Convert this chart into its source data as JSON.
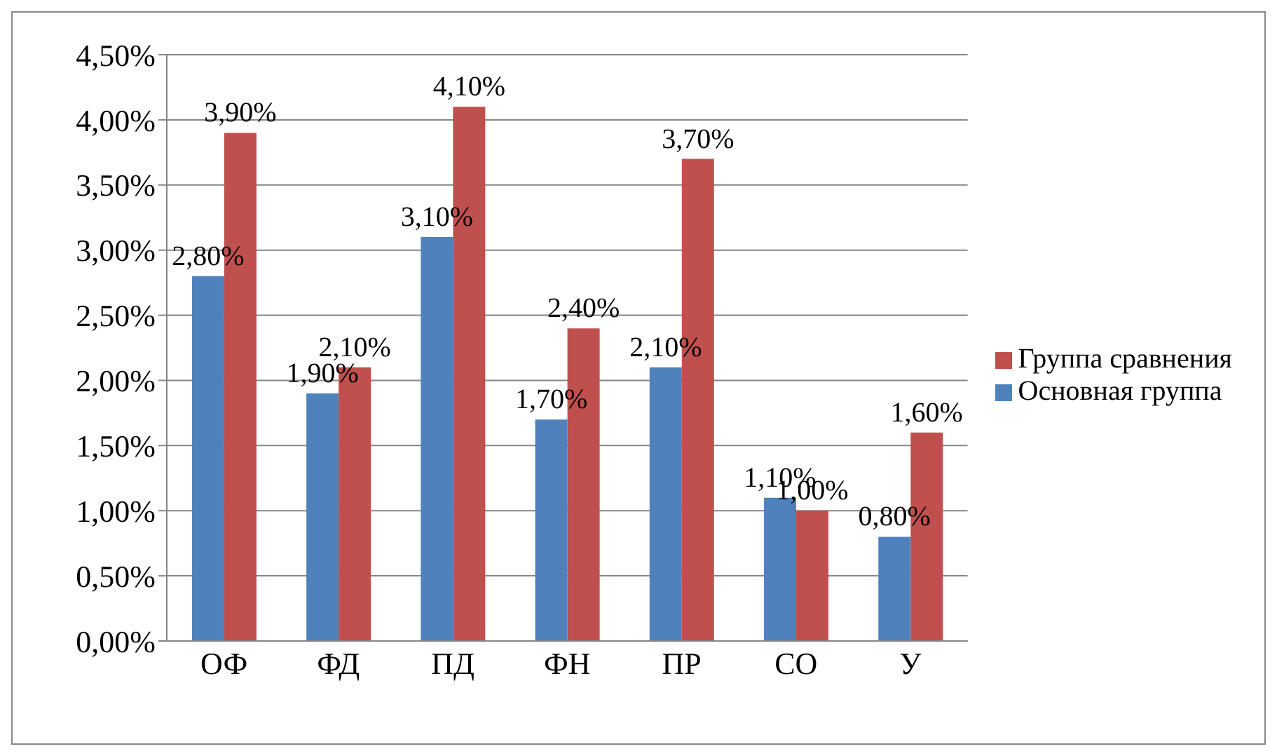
{
  "chart_data": {
    "type": "bar",
    "categories": [
      "ОФ",
      "ФД",
      "ПД",
      "ФН",
      "ПР",
      "СО",
      "У"
    ],
    "series": [
      {
        "name": "Основная группа",
        "color": "#4f81bd",
        "values": [
          2.8,
          1.9,
          3.1,
          1.7,
          2.1,
          1.1,
          0.8
        ],
        "value_labels": [
          "2,80%",
          "1,90%",
          "3,10%",
          "1,70%",
          "2,10%",
          "1,10%",
          "0,80%"
        ]
      },
      {
        "name": "Группа сравнения",
        "color": "#c0504d",
        "values": [
          3.9,
          2.1,
          4.1,
          2.4,
          3.7,
          1.0,
          1.6
        ],
        "value_labels": [
          "3,90%",
          "2,10%",
          "4,10%",
          "2,40%",
          "3,70%",
          "1,00%",
          "1,60%"
        ]
      }
    ],
    "ylim": [
      0,
      4.5
    ],
    "yticks": [
      {
        "value": 0,
        "label": "0,00%"
      },
      {
        "value": 0.5,
        "label": "0,50%"
      },
      {
        "value": 1,
        "label": "1,00%"
      },
      {
        "value": 1.5,
        "label": "1,50%"
      },
      {
        "value": 2,
        "label": "2,00%"
      },
      {
        "value": 2.5,
        "label": "2,50%"
      },
      {
        "value": 3,
        "label": "3,00%"
      },
      {
        "value": 3.5,
        "label": "3,50%"
      },
      {
        "value": 4,
        "label": "4,00%"
      },
      {
        "value": 4.5,
        "label": "4,50%"
      }
    ],
    "grid": "y",
    "legend": "right"
  }
}
